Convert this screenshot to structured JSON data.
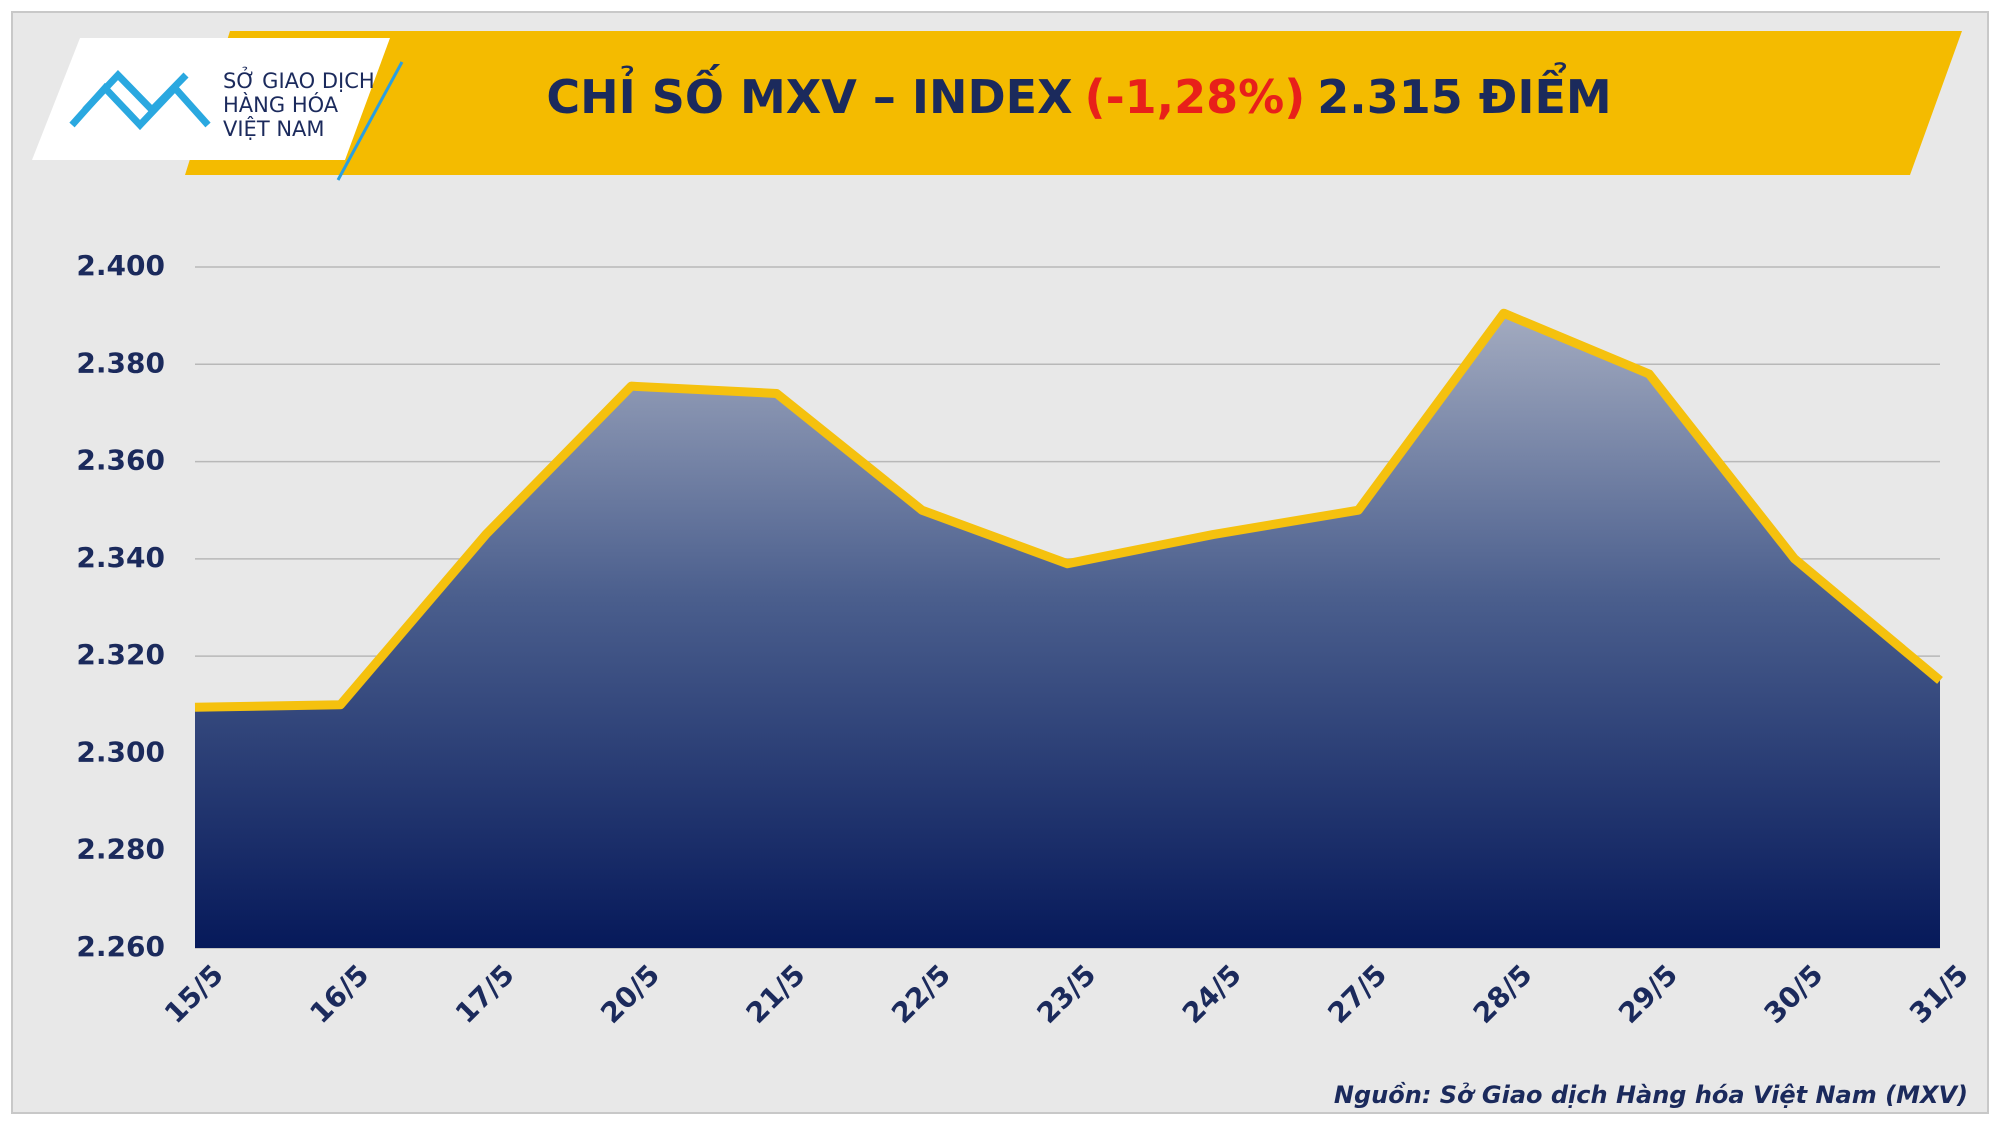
{
  "logo": {
    "lines": [
      "SỞ GIAO DỊCH",
      "HÀNG HÓA",
      "VIỆT NAM"
    ]
  },
  "chart_data": {
    "type": "area",
    "title": {
      "parts": [
        "CHỈ SỐ MXV – INDEX",
        "(-1,28%)",
        "2.315 ĐIỂM"
      ],
      "colors": [
        "#1b2a5c",
        "#e8201a",
        "#1b2a5c"
      ]
    },
    "categories": [
      "15/5",
      "16/5",
      "17/5",
      "20/5",
      "21/5",
      "22/5",
      "23/5",
      "24/5",
      "27/5",
      "28/5",
      "29/5",
      "30/5",
      "31/5"
    ],
    "values": [
      2309.5,
      2310,
      2345,
      2375.5,
      2374,
      2350,
      2339,
      2345,
      2350,
      2390.5,
      2378,
      2340,
      2315
    ],
    "color": "#f5c10e",
    "ylim": [
      2260,
      2400
    ],
    "yticks": [
      {
        "value": 2260,
        "label": "2.260"
      },
      {
        "value": 2280,
        "label": "2.280"
      },
      {
        "value": 2300,
        "label": "2.300"
      },
      {
        "value": 2320,
        "label": "2.320"
      },
      {
        "value": 2340,
        "label": "2.340"
      },
      {
        "value": 2360,
        "label": "2.360"
      },
      {
        "value": 2380,
        "label": "2.380"
      },
      {
        "value": 2400,
        "label": "2.400"
      }
    ],
    "grid": true,
    "source": "Nguồn: Sở Giao dịch Hàng hóa Việt Nam (MXV)"
  }
}
